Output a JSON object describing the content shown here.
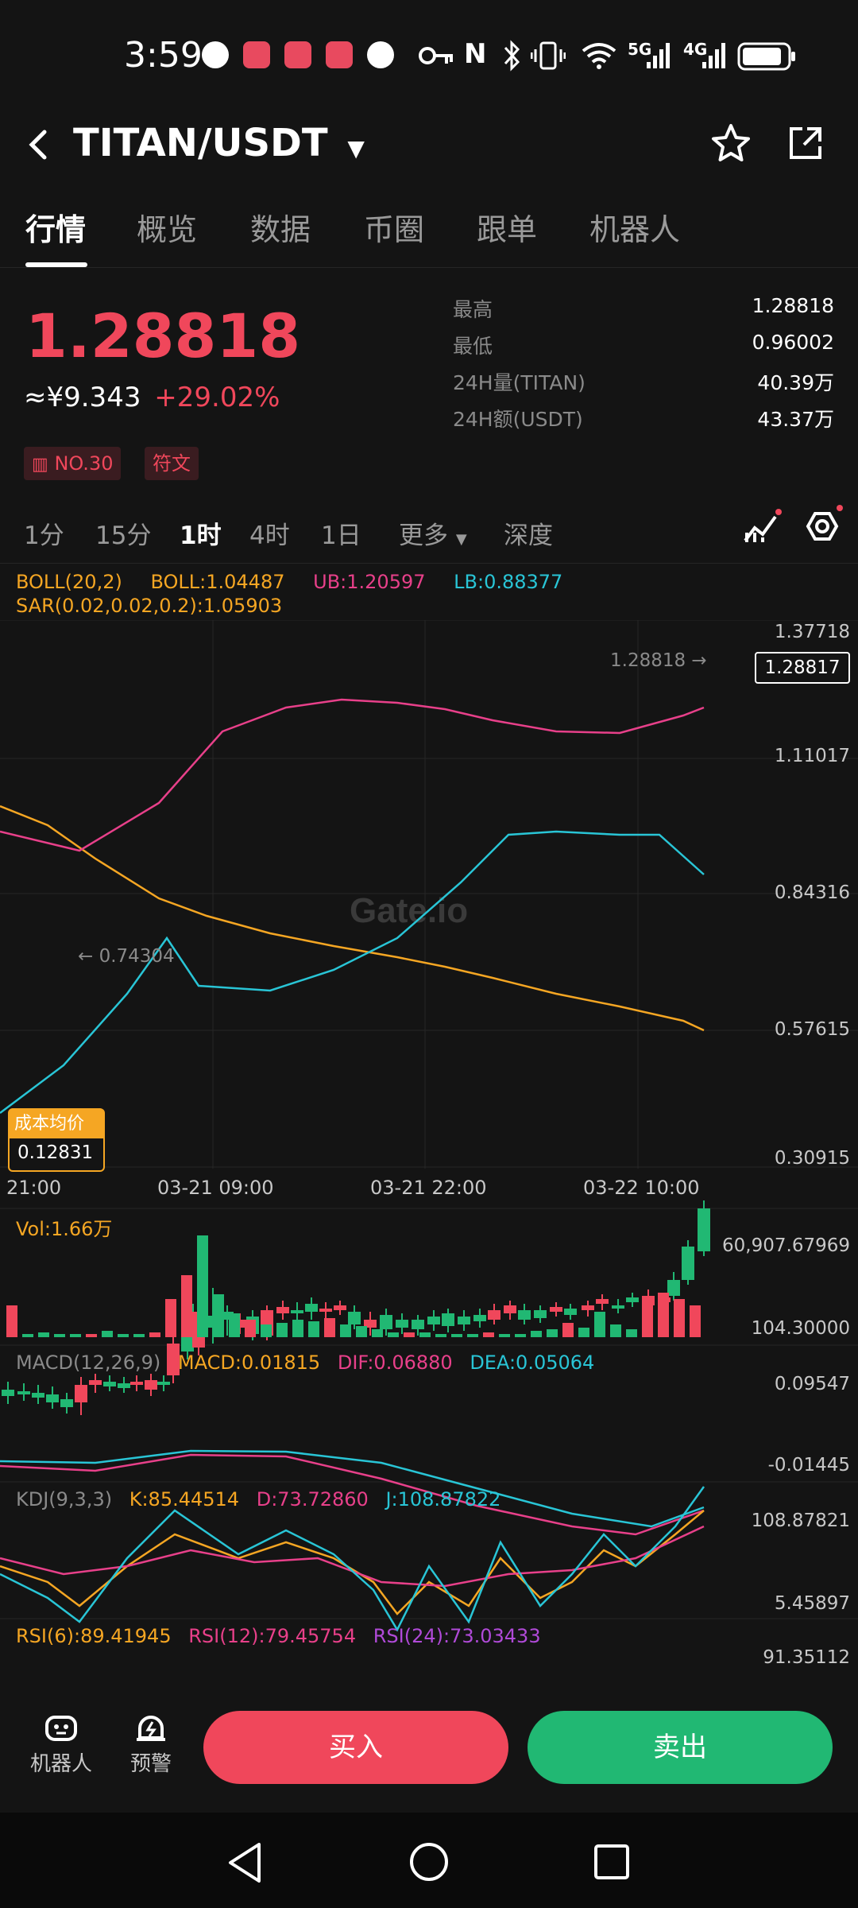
{
  "status_bar": {
    "time": "3:59",
    "network_5g": "5G",
    "network_4g": "4G"
  },
  "header": {
    "pair": "TITAN/USDT"
  },
  "tabs": [
    "行情",
    "概览",
    "数据",
    "币圈",
    "跟单",
    "机器人"
  ],
  "price": {
    "last": "1.28818",
    "cny": "≈¥9.343",
    "change": "+29.02%",
    "rank_tag": "NO.30",
    "category_tag": "符文"
  },
  "stats": [
    {
      "label": "最高",
      "value": "1.28818"
    },
    {
      "label": "最低",
      "value": "0.96002"
    },
    {
      "label": "24H量(TITAN)",
      "value": "40.39万"
    },
    {
      "label": "24H额(USDT)",
      "value": "43.37万"
    }
  ],
  "intervals": [
    "1分",
    "15分",
    "1时",
    "4时",
    "1日",
    "更多",
    "深度"
  ],
  "indicators": {
    "boll_name": "BOLL(20,2)",
    "boll_value": "BOLL:1.04487",
    "ub": "UB:1.20597",
    "lb": "LB:0.88377",
    "sar": "SAR(0.02,0.02,0.2):1.05903",
    "vol": "Vol:1.66万",
    "macd_name": "MACD(12,26,9)",
    "macd": "MACD:0.01815",
    "dif": "DIF:0.06880",
    "dea": "DEA:0.05064",
    "kdj_name": "KDJ(9,3,3)",
    "k": "K:85.44514",
    "d": "D:73.72860",
    "j": "J:108.87822",
    "rsi6": "RSI(6):89.41945",
    "rsi12": "RSI(12):79.45754",
    "rsi24": "RSI(24):73.03433"
  },
  "chart_axes": {
    "main_y": [
      "1.37718",
      "1.11017",
      "0.84316",
      "0.57615",
      "0.30915"
    ],
    "x": [
      "21:00",
      "03-21 09:00",
      "03-21 22:00",
      "03-22 10:00"
    ],
    "vol_y": [
      "60,907.67969",
      "104.30000"
    ],
    "macd_y": [
      "0.09547",
      "-0.01445"
    ],
    "kdj_y": [
      "108.87821",
      "5.45897"
    ],
    "rsi_y": "91.35112"
  },
  "chart_labels": {
    "high_marker": "1.28818 →",
    "low_marker": "← 0.74304",
    "current_price": "1.28817",
    "cost_label": "成本均价",
    "cost_value": "0.12831",
    "watermark": "Gate.io"
  },
  "bottom": {
    "robot": "机器人",
    "alert": "预警",
    "buy": "买入",
    "sell": "卖出"
  },
  "colors": {
    "up": "#f0475b",
    "down": "#21b873",
    "boll": "#f5a623",
    "ub": "#e8408a",
    "lb": "#29c5d6",
    "bg": "#141414"
  }
}
